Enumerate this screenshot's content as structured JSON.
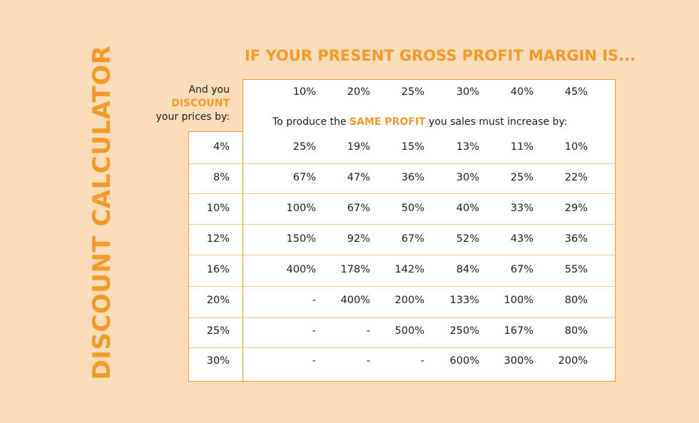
{
  "title": "DISCOUNT CALCULATOR",
  "headline": "IF YOUR PRESENT GROSS PROFIT MARGIN IS...",
  "side_label": {
    "line1": "And you",
    "line2": "DISCOUNT",
    "line3": "your prices by:"
  },
  "margins": [
    "10%",
    "20%",
    "25%",
    "30%",
    "40%",
    "45%"
  ],
  "subtitle": {
    "pre": "To produce the ",
    "accent": "SAME PROFIT",
    "post": " you sales must increase by:"
  },
  "rows": [
    {
      "discount": "4%",
      "values": [
        "25%",
        "19%",
        "15%",
        "13%",
        "11%",
        "10%"
      ]
    },
    {
      "discount": "8%",
      "values": [
        "67%",
        "47%",
        "36%",
        "30%",
        "25%",
        "22%"
      ]
    },
    {
      "discount": "10%",
      "values": [
        "100%",
        "67%",
        "50%",
        "40%",
        "33%",
        "29%"
      ]
    },
    {
      "discount": "12%",
      "values": [
        "150%",
        "92%",
        "67%",
        "52%",
        "43%",
        "36%"
      ]
    },
    {
      "discount": "16%",
      "values": [
        "400%",
        "178%",
        "142%",
        "84%",
        "67%",
        "55%"
      ]
    },
    {
      "discount": "20%",
      "values": [
        "-",
        "400%",
        "200%",
        "133%",
        "100%",
        "80%"
      ]
    },
    {
      "discount": "25%",
      "values": [
        "-",
        "-",
        "500%",
        "250%",
        "167%",
        "80%"
      ]
    },
    {
      "discount": "30%",
      "values": [
        "-",
        "-",
        "-",
        "600%",
        "300%",
        "200%"
      ]
    }
  ],
  "colors": {
    "background": "#FDDDB9",
    "accent": "#F39A2B",
    "table_bg": "#FFFFFF"
  }
}
